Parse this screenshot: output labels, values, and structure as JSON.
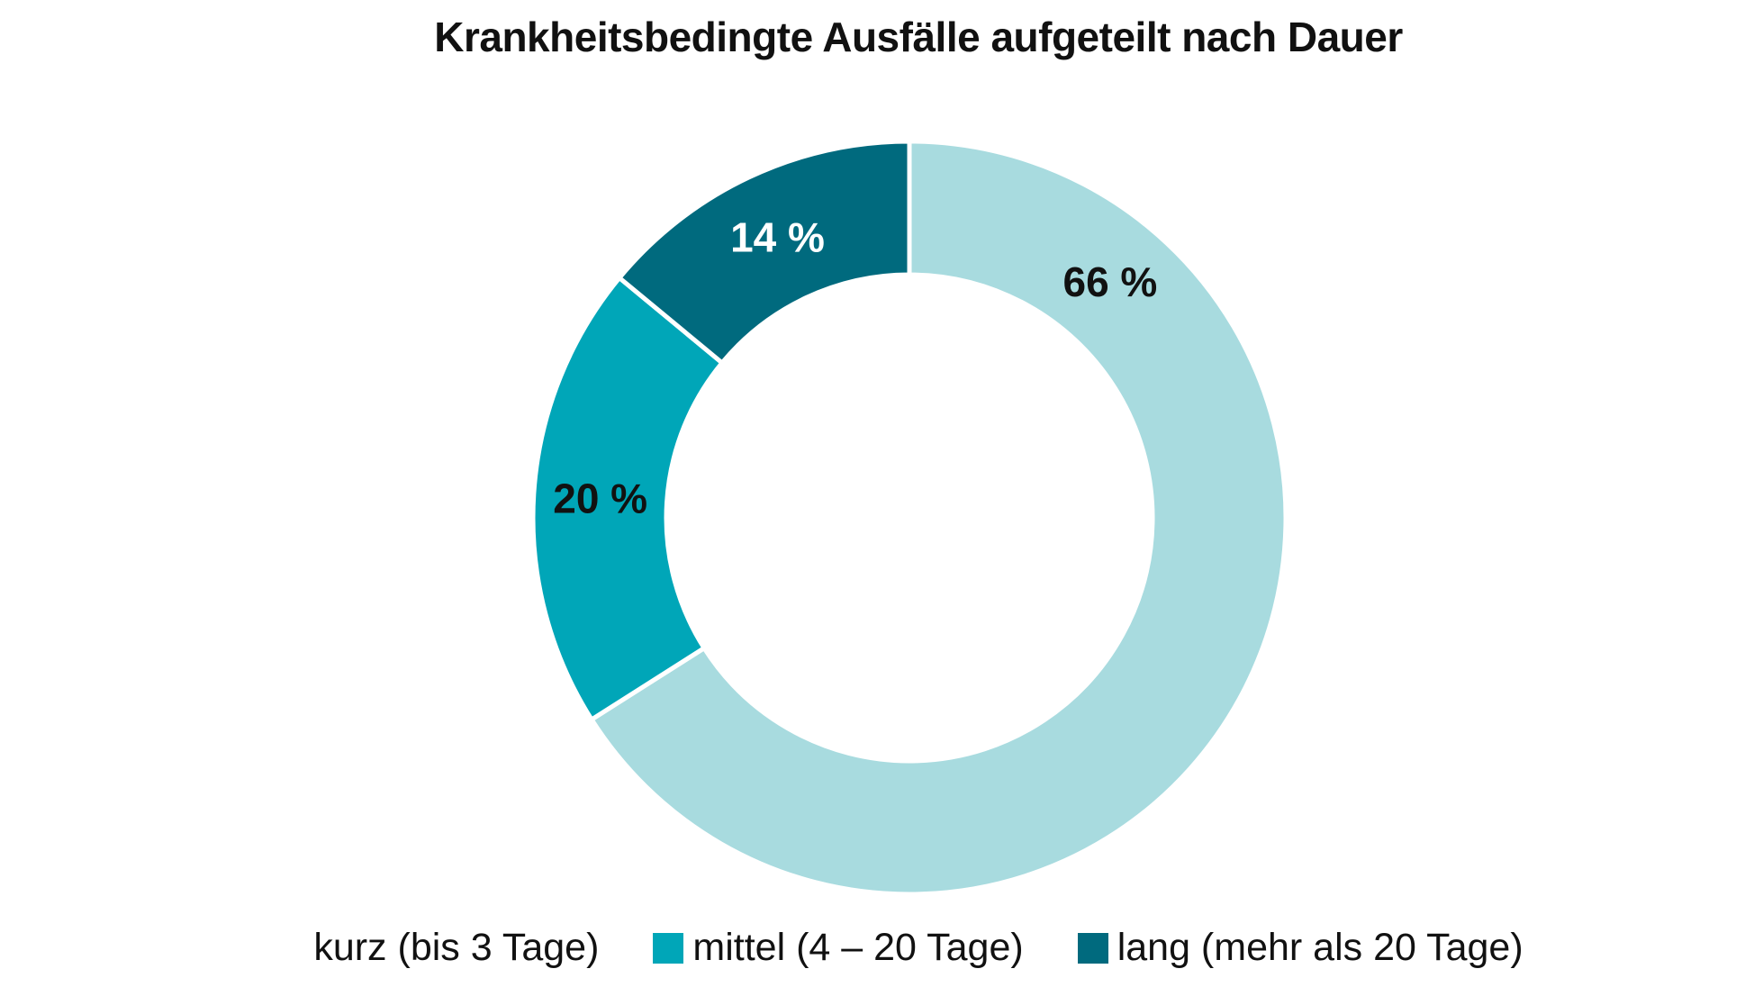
{
  "chart_data": {
    "type": "pie",
    "title": "Krankheitsbedingte Ausfälle aufgeteilt nach Dauer",
    "donut": true,
    "legend_position": "bottom",
    "slices": [
      {
        "label": "kurz (bis 3 Tage)",
        "value": 66,
        "display": "66 %",
        "color": "#a8dbdf",
        "label_color": "#111111"
      },
      {
        "label": "mittel (4 – 20 Tage)",
        "value": 20,
        "display": "20 %",
        "color": "#00a6b8",
        "label_color": "#111111"
      },
      {
        "label": "lang (mehr als 20 Tage)",
        "value": 14,
        "display": "14 %",
        "color": "#006a7e",
        "label_color": "#ffffff"
      }
    ]
  }
}
